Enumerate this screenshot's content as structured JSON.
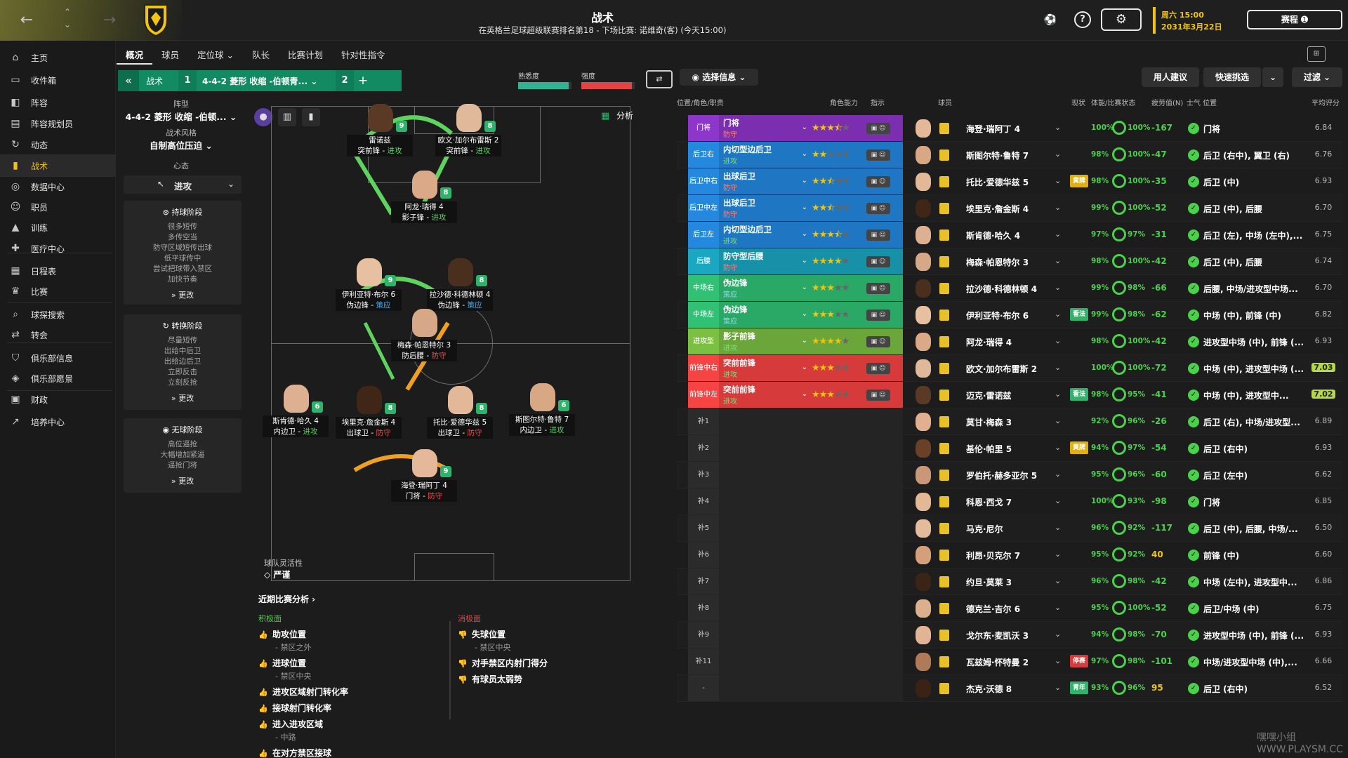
{
  "header": {
    "title": "战术",
    "subtitle": "在英格兰足球超级联赛排名第18 - 下场比赛: 诺维奇(客) (今天15:00)",
    "date_day": "周六 15:00",
    "date_full": "2031年3月22日",
    "continue_label": "赛程 ➊"
  },
  "sidebar": [
    {
      "label": "主页",
      "icon": "home-icon",
      "glyph": "⌂"
    },
    {
      "label": "收件箱",
      "icon": "inbox-icon",
      "glyph": "▭"
    },
    {
      "label": "阵容",
      "icon": "shirt-icon",
      "glyph": "◧"
    },
    {
      "label": "阵容规划员",
      "icon": "planner-icon",
      "glyph": "▤"
    },
    {
      "label": "动态",
      "icon": "dynamics-icon",
      "glyph": "↻"
    },
    {
      "label": "战术",
      "icon": "tactics-icon",
      "glyph": "▮"
    },
    {
      "label": "数据中心",
      "icon": "data-icon",
      "glyph": "◎"
    },
    {
      "label": "职员",
      "icon": "staff-icon",
      "glyph": "☺"
    },
    {
      "label": "训练",
      "icon": "training-icon",
      "glyph": "▲"
    },
    {
      "label": "医疗中心",
      "icon": "medical-icon",
      "glyph": "✚"
    },
    {
      "label": "日程表",
      "icon": "calendar-icon",
      "glyph": "▦"
    },
    {
      "label": "比赛",
      "icon": "trophy-icon",
      "glyph": "♛"
    },
    {
      "label": "球探搜索",
      "icon": "search-icon",
      "glyph": "⌕"
    },
    {
      "label": "转会",
      "icon": "transfer-icon",
      "glyph": "⇄"
    },
    {
      "label": "俱乐部信息",
      "icon": "club-icon",
      "glyph": "⛉"
    },
    {
      "label": "俱乐部愿景",
      "icon": "vision-icon",
      "glyph": "◈"
    },
    {
      "label": "财政",
      "icon": "finance-icon",
      "glyph": "▣"
    },
    {
      "label": "培养中心",
      "icon": "development-icon",
      "glyph": "↗"
    }
  ],
  "tabs": [
    "概况",
    "球员",
    "定位球 ⌄",
    "队长",
    "比赛计划",
    "针对性指令"
  ],
  "tactic_bar": {
    "label": "战术",
    "slot1": "1",
    "name": "4-4-2 菱形 收缩 -伯顿青... ⌄",
    "slot2": "2",
    "add": "+",
    "familiarity_label": "熟悉度",
    "intensity_label": "强度",
    "familiarity": 0.95,
    "intensity": 0.95
  },
  "tactic_panel": {
    "formation_caption": "阵型",
    "formation": "4-4-2 菱形 收缩 -伯顿... ⌄",
    "style_caption": "战术风格",
    "style": "自制高位压迫 ⌄",
    "mentality_caption": "心态",
    "mentality": "进攻",
    "in_possession": {
      "title": "持球阶段",
      "lines": [
        "很多短传",
        "多传空当",
        "防守区域短传出球",
        "低平球传中",
        "尝试把球带入禁区",
        "加快节奏"
      ],
      "more": "更改"
    },
    "transition": {
      "title": "转换阶段",
      "lines": [
        "尽量短传",
        "出给中后卫",
        "出给边后卫",
        "立即反击",
        "立刻反抢"
      ],
      "more": "更改"
    },
    "out_possession": {
      "title": "无球阶段",
      "lines": [
        "高位逼抢",
        "大幅增加紧逼",
        "逼抢门将"
      ],
      "more": "更改"
    }
  },
  "pitch": {
    "analysis_label": "分析",
    "fluidity_caption": "球队灵活性",
    "fluidity": "严谨",
    "players": [
      {
        "name": "雷诺兹",
        "role": "突前锋",
        "duty": "进攻",
        "duty_class": "duty-attack",
        "rating": "9",
        "skin": "#5a3a24"
      },
      {
        "name": "欧文·加尔布雷斯 2",
        "role": "突前锋",
        "duty": "进攻",
        "duty_class": "duty-attack",
        "rating": "8",
        "skin": "#e0b89a"
      },
      {
        "name": "阿龙·瑞得 4",
        "role": "影子锋",
        "duty": "进攻",
        "duty_class": "duty-attack",
        "rating": "8",
        "skin": "#d9a988"
      },
      {
        "name": "伊利亚特·布尔 6",
        "role": "伪边锋",
        "duty": "策应",
        "duty_class": "duty-support",
        "rating": "9",
        "skin": "#e6c0a0"
      },
      {
        "name": "拉沙德·科德林顿 4",
        "role": "伪边锋",
        "duty": "策应",
        "duty_class": "duty-support",
        "rating": "8",
        "skin": "#4a2e1e"
      },
      {
        "name": "梅森·帕恩特尔 3",
        "role": "防后腰",
        "duty": "防守",
        "duty_class": "duty-defend",
        "rating": "",
        "skin": "#d7a888"
      },
      {
        "name": "斯肯德·哈久 4",
        "role": "内边卫",
        "duty": "进攻",
        "duty_class": "duty-attack",
        "rating": "6",
        "skin": "#dcb090"
      },
      {
        "name": "埃里克·詹金斯 4",
        "role": "出球卫",
        "duty": "防守",
        "duty_class": "duty-defend",
        "rating": "8",
        "skin": "#3f2616"
      },
      {
        "name": "托比·爱德华兹 5",
        "role": "出球卫",
        "duty": "防守",
        "duty_class": "duty-defend",
        "rating": "8",
        "skin": "#e2b898"
      },
      {
        "name": "斯图尔特·鲁特 7",
        "role": "内边卫",
        "duty": "进攻",
        "duty_class": "duty-attack",
        "rating": "6",
        "skin": "#d8a884"
      },
      {
        "name": "海登·瑞阿丁 4",
        "role": "门将",
        "duty": "防守",
        "duty_class": "duty-defend",
        "rating": "9",
        "skin": "#e4b898"
      }
    ]
  },
  "recent_analysis": {
    "title": "近期比赛分析 ›",
    "positive_header": "积极面",
    "negative_header": "消极面",
    "positives": [
      {
        "text": "助攻位置",
        "sub": "- 禁区之外"
      },
      {
        "text": "进球位置",
        "sub": "- 禁区中央"
      },
      {
        "text": "进攻区域射门转化率",
        "sub": ""
      },
      {
        "text": "接球射门转化率",
        "sub": ""
      },
      {
        "text": "进入进攻区域",
        "sub": "- 中路"
      },
      {
        "text": "在对方禁区接球",
        "sub": ""
      }
    ],
    "negatives": [
      {
        "text": "失球位置",
        "sub": "- 禁区中央"
      },
      {
        "text": "对手禁区内射门得分",
        "sub": ""
      },
      {
        "text": "有球员太弱势",
        "sub": ""
      }
    ]
  },
  "squad_panel": {
    "select_info": "◉ 选择信息 ⌄",
    "buttons": [
      "用人建议",
      "快速挑选",
      "⌄",
      "过滤 ⌄"
    ],
    "headers": [
      "位置/角色/职责",
      "角色能力",
      "指示",
      "球员",
      "现状",
      "体能/比赛状态",
      "疲劳值(N)",
      "士气 位置",
      "平均评分"
    ],
    "rows": [
      {
        "pos": "门将",
        "role": "门将",
        "duty": "防守",
        "color": "#7b2fb0",
        "stars": 3.5,
        "name": "海登·瑞阿丁 4",
        "tag": "",
        "cond": "100%",
        "sharp": "100%",
        "fat": "-167",
        "best": "门将",
        "avg": "6.84",
        "hl": false,
        "skin": "#e4b898"
      },
      {
        "pos": "后卫右",
        "role": "内切型边后卫",
        "duty": "进攻",
        "color": "#1f76c2",
        "stars": 2,
        "name": "斯图尔特·鲁特 7",
        "tag": "",
        "cond": "98%",
        "sharp": "100%",
        "fat": "-47",
        "best": "后卫 (右中), 翼卫 (右)",
        "avg": "6.76",
        "hl": false,
        "skin": "#d8a884"
      },
      {
        "pos": "后卫中右",
        "role": "出球后卫",
        "duty": "防守",
        "color": "#1f76c2",
        "stars": 2.5,
        "name": "托比·爱德华兹 5",
        "tag": "黄牌",
        "cond": "98%",
        "sharp": "100%",
        "fat": "-35",
        "best": "后卫 (中)",
        "avg": "6.93",
        "hl": false,
        "skin": "#e2b898"
      },
      {
        "pos": "后卫中左",
        "role": "出球后卫",
        "duty": "防守",
        "color": "#1f76c2",
        "stars": 2.5,
        "name": "埃里克·詹金斯 4",
        "tag": "",
        "cond": "99%",
        "sharp": "100%",
        "fat": "-52",
        "best": "后卫 (中), 后腰",
        "avg": "6.70",
        "hl": false,
        "skin": "#3f2616"
      },
      {
        "pos": "后卫左",
        "role": "内切型边后卫",
        "duty": "进攻",
        "color": "#1f76c2",
        "stars": 3.5,
        "name": "斯肯德·哈久 4",
        "tag": "",
        "cond": "97%",
        "sharp": "97%",
        "fat": "-31",
        "best": "后卫 (左), 中场 (左中),...",
        "avg": "6.75",
        "hl": false,
        "skin": "#dcb090"
      },
      {
        "pos": "后腰",
        "role": "防守型后腰",
        "duty": "防守",
        "color": "#1791a8",
        "stars": 4,
        "name": "梅森·帕恩特尔 3",
        "tag": "",
        "cond": "98%",
        "sharp": "100%",
        "fat": "-42",
        "best": "后卫 (中), 后腰",
        "avg": "6.74",
        "hl": false,
        "skin": "#d7a888"
      },
      {
        "pos": "中场右",
        "role": "伪边锋",
        "duty": "策应",
        "color": "#2aa866",
        "stars": 3,
        "name": "拉沙德·科德林顿 4",
        "tag": "",
        "cond": "99%",
        "sharp": "98%",
        "fat": "-66",
        "best": "后腰, 中场/进攻型中场...",
        "avg": "6.70",
        "hl": false,
        "skin": "#4a2e1e"
      },
      {
        "pos": "中场左",
        "role": "伪边锋",
        "duty": "策应",
        "color": "#2aa866",
        "stars": 3,
        "name": "伊利亚特·布尔 6",
        "tag": "看法",
        "cond": "99%",
        "sharp": "98%",
        "fat": "-62",
        "best": "中场 (中), 前锋 (中)",
        "avg": "6.82",
        "hl": false,
        "skin": "#e6c0a0"
      },
      {
        "pos": "进攻型中...",
        "role": "影子前锋",
        "duty": "进攻",
        "color": "#6ba63a",
        "stars": 4,
        "name": "阿龙·瑞得 4",
        "tag": "",
        "cond": "98%",
        "sharp": "100%",
        "fat": "-42",
        "best": "进攻型中场 (中), 前锋 (...",
        "avg": "6.93",
        "hl": false,
        "skin": "#d9a988"
      },
      {
        "pos": "前锋中右",
        "role": "突前前锋",
        "duty": "进攻",
        "color": "#d63a3a",
        "stars": 3,
        "name": "欧文·加尔布雷斯 2",
        "tag": "",
        "cond": "100%",
        "sharp": "100%",
        "fat": "-72",
        "best": "中场 (中), 进攻型中场 (...",
        "avg": "7.03",
        "hl": true,
        "skin": "#e0b89a"
      },
      {
        "pos": "前锋中左",
        "role": "突前前锋",
        "duty": "进攻",
        "color": "#d63a3a",
        "stars": 3,
        "name": "迈克·雷诺兹",
        "tag": "看法",
        "cond": "98%",
        "sharp": "95%",
        "fat": "-41",
        "best": "中场 (中), 进攻型中...",
        "avg": "7.02",
        "hl": true,
        "skin": "#5a3a24"
      },
      {
        "pos": "补1",
        "role": "",
        "duty": "",
        "color": "",
        "stars": 0,
        "name": "莫甘·梅森 3",
        "tag": "",
        "cond": "92%",
        "sharp": "96%",
        "fat": "-26",
        "best": "后卫 (右), 中场/进攻型...",
        "avg": "6.89",
        "hl": false,
        "skin": "#e0b090"
      },
      {
        "pos": "补2",
        "role": "",
        "duty": "",
        "color": "",
        "stars": 0,
        "name": "基伦·帕里 5",
        "tag": "黄牌",
        "cond": "94%",
        "sharp": "97%",
        "fat": "-54",
        "best": "后卫 (右中)",
        "avg": "6.93",
        "hl": false,
        "skin": "#6a4028"
      },
      {
        "pos": "补3",
        "role": "",
        "duty": "",
        "color": "",
        "stars": 0,
        "name": "罗伯托·赫多亚尔 5",
        "tag": "",
        "cond": "95%",
        "sharp": "96%",
        "fat": "-60",
        "best": "后卫 (左中)",
        "avg": "6.62",
        "hl": false,
        "skin": "#c89878"
      },
      {
        "pos": "补4",
        "role": "",
        "duty": "",
        "color": "",
        "stars": 0,
        "name": "科恩·西戈 7",
        "tag": "",
        "cond": "100%",
        "sharp": "93%",
        "fat": "-98",
        "best": "门将",
        "avg": "6.85",
        "hl": false,
        "skin": "#e2b896"
      },
      {
        "pos": "补5",
        "role": "",
        "duty": "",
        "color": "",
        "stars": 0,
        "name": "马克·尼尔",
        "tag": "",
        "cond": "96%",
        "sharp": "92%",
        "fat": "-117",
        "best": "后卫 (中), 后腰, 中场/...",
        "avg": "6.50",
        "hl": false,
        "skin": "#e4bc9c"
      },
      {
        "pos": "补6",
        "role": "",
        "duty": "",
        "color": "",
        "stars": 0,
        "name": "利昂·贝克尔 7",
        "tag": "",
        "cond": "95%",
        "sharp": "92%",
        "fat": "40",
        "best": "前锋 (中)",
        "avg": "6.60",
        "hl": false,
        "skin": "#d4a07c"
      },
      {
        "pos": "补7",
        "role": "",
        "duty": "",
        "color": "",
        "stars": 0,
        "name": "约旦·莫莱 3",
        "tag": "",
        "cond": "96%",
        "sharp": "98%",
        "fat": "-42",
        "best": "中场 (左中), 进攻型中...",
        "avg": "6.86",
        "hl": false,
        "skin": "#3a2416"
      },
      {
        "pos": "补8",
        "role": "",
        "duty": "",
        "color": "",
        "stars": 0,
        "name": "德克兰·吉尔 6",
        "tag": "",
        "cond": "95%",
        "sharp": "100%",
        "fat": "-52",
        "best": "后卫/中场 (中)",
        "avg": "6.75",
        "hl": false,
        "skin": "#dcb08c"
      },
      {
        "pos": "补9",
        "role": "",
        "duty": "",
        "color": "",
        "stars": 0,
        "name": "戈尔东·麦凯沃 3",
        "tag": "",
        "cond": "94%",
        "sharp": "98%",
        "fat": "-70",
        "best": "进攻型中场 (中), 前锋 (...",
        "avg": "6.93",
        "hl": false,
        "skin": "#e0b494"
      },
      {
        "pos": "补11",
        "role": "",
        "duty": "",
        "color": "",
        "stars": 0,
        "name": "瓦兹姆·怀特曼 2",
        "tag": "停赛",
        "cond": "97%",
        "sharp": "98%",
        "fat": "-101",
        "best": "中场/进攻型中场 (中),...",
        "avg": "6.66",
        "hl": false,
        "skin": "#b07a58"
      },
      {
        "pos": "-",
        "role": "",
        "duty": "",
        "color": "",
        "stars": 0,
        "name": "杰克·沃德 8",
        "tag": "青年",
        "cond": "93%",
        "sharp": "96%",
        "fat": "95",
        "best": "后卫 (右中)",
        "avg": "6.52",
        "hl": false,
        "skin": "#3a2214"
      }
    ]
  },
  "watermark": "嘿嘿小组 WWW.PLAYSM.CC"
}
